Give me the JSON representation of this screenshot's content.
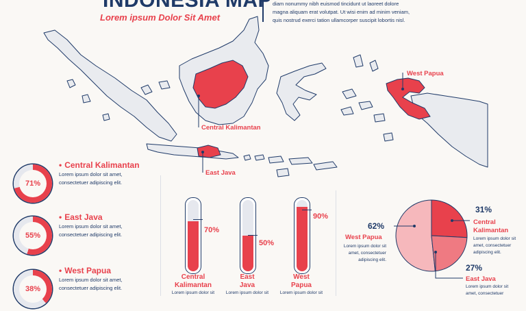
{
  "header": {
    "title": "INDONESIA MAP",
    "subtitle": "Lorem ipsum Dolor Sit Amet",
    "intro_lines": [
      "diam nonummy nibh euismod tincidunt ut laoreet dolore",
      "magna aliquam erat volutpat. Ut wisi enim ad minim veniam,",
      "quis nostrud exerci tation ullamcorper suscipit lobortis nisl."
    ]
  },
  "map": {
    "labels": {
      "central_kalimantan": "Central Kalimantan",
      "east_java": "East Java",
      "west_papua": "West Papua"
    }
  },
  "donut_list": [
    {
      "percent": "71%",
      "value": 71,
      "title": "Central Kalimantan",
      "text1": "Lorem ipsum dolor sit amet,",
      "text2": "consectetuer adipiscing elit."
    },
    {
      "percent": "55%",
      "value": 55,
      "title": "East Java",
      "text1": "Lorem ipsum dolor sit amet,",
      "text2": "consectetuer adipiscing elit."
    },
    {
      "percent": "38%",
      "value": 38,
      "title": "West Papua",
      "text1": "Lorem ipsum dolor sit amet,",
      "text2": "consectetuer adipiscing elit."
    }
  ],
  "thermometers": [
    {
      "percent": "70%",
      "value": 70,
      "name1": "Central",
      "name2": "Kalimantan",
      "text": "Lorem ipsum dolor sit"
    },
    {
      "percent": "50%",
      "value": 50,
      "name1": "East",
      "name2": "Java",
      "text": "Lorem ipsum dolor sit"
    },
    {
      "percent": "90%",
      "value": 90,
      "name1": "West",
      "name2": "Papua",
      "text": "Lorem ipsum dolor sit"
    }
  ],
  "pie": {
    "items": [
      {
        "percent": "62%",
        "value": 62,
        "name1": "West Papua",
        "name2": "",
        "lines": [
          "Lorem ipsum dolor sit",
          "amet, consectetuer",
          "adipiscing elit."
        ]
      },
      {
        "percent": "31%",
        "value": 31,
        "name1": "Central",
        "name2": "Kalimantan",
        "lines": [
          "Lorem ipsum dolor sit",
          "amet, consectetuer",
          "adipiscing elit."
        ]
      },
      {
        "percent": "27%",
        "value": 27,
        "name1": "East Java",
        "name2": "",
        "lines": [
          "Lorem ipsum dolor sit",
          "amet, consectetuer"
        ]
      }
    ]
  },
  "colors": {
    "accent": "#e8414c",
    "navy": "#1f3a68",
    "track": "#e6e8ee",
    "pie_light": "#f6b8bc",
    "pie_mid": "#ef7a82",
    "pie_dark": "#e8414c"
  }
}
